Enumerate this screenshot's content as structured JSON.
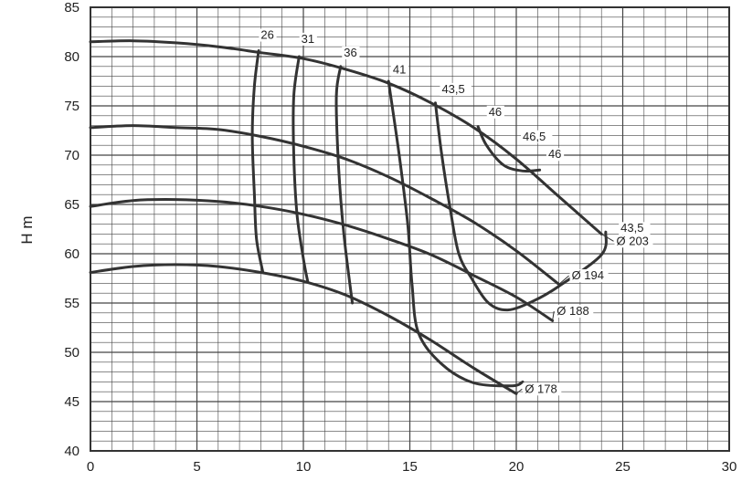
{
  "colors": {
    "curve": "#333333",
    "grid": "#444444",
    "text": "#222222",
    "background": "#ffffff"
  },
  "chart_data": {
    "type": "line",
    "title": "",
    "xlabel": "",
    "ylabel": "H m",
    "xlim": [
      0,
      30
    ],
    "ylim": [
      40,
      85
    ],
    "x_ticks": [
      "0",
      "5",
      "10",
      "15",
      "20",
      "25",
      "30"
    ],
    "y_ticks": [
      "40",
      "45",
      "50",
      "55",
      "60",
      "65",
      "70",
      "75",
      "80",
      "85"
    ],
    "grid": true,
    "impeller_curves": [
      {
        "label": "Ø 203",
        "label_at": [
          24.7,
          60.9
        ],
        "points": [
          [
            0,
            81.5
          ],
          [
            2,
            81.6
          ],
          [
            4,
            81.4
          ],
          [
            6,
            81.0
          ],
          [
            8,
            80.4
          ],
          [
            10,
            79.8
          ],
          [
            12,
            78.7
          ],
          [
            14,
            77.3
          ],
          [
            16,
            75.3
          ],
          [
            18,
            72.8
          ],
          [
            20,
            69.6
          ],
          [
            22,
            65.8
          ],
          [
            24,
            62.0
          ]
        ]
      },
      {
        "label": "Ø 194",
        "label_at": [
          22.6,
          57.4
        ],
        "points": [
          [
            0,
            72.8
          ],
          [
            2,
            73.0
          ],
          [
            4,
            72.8
          ],
          [
            6,
            72.6
          ],
          [
            8,
            71.9
          ],
          [
            10,
            70.9
          ],
          [
            12,
            69.6
          ],
          [
            14,
            67.8
          ],
          [
            16,
            65.6
          ],
          [
            18,
            63.2
          ],
          [
            20,
            60.3
          ],
          [
            22,
            56.9
          ]
        ]
      },
      {
        "label": "Ø 188",
        "label_at": [
          21.9,
          53.8
        ],
        "points": [
          [
            0,
            64.8
          ],
          [
            2,
            65.4
          ],
          [
            4,
            65.5
          ],
          [
            6,
            65.3
          ],
          [
            8,
            64.8
          ],
          [
            10,
            64.0
          ],
          [
            12,
            62.9
          ],
          [
            14,
            61.5
          ],
          [
            16,
            59.9
          ],
          [
            18,
            57.8
          ],
          [
            20,
            55.6
          ],
          [
            21.7,
            53.2
          ]
        ]
      },
      {
        "label": "Ø 178",
        "label_at": [
          20.4,
          45.9
        ],
        "points": [
          [
            0,
            58.1
          ],
          [
            2,
            58.7
          ],
          [
            4,
            58.9
          ],
          [
            6,
            58.7
          ],
          [
            8,
            58.1
          ],
          [
            10,
            57.2
          ],
          [
            12,
            55.8
          ],
          [
            14,
            53.7
          ],
          [
            16,
            51.2
          ],
          [
            18,
            48.4
          ],
          [
            20,
            45.8
          ]
        ]
      }
    ],
    "efficiency_curves": [
      {
        "label": "26",
        "label_at": [
          8.0,
          81.8
        ],
        "points": [
          [
            7.9,
            80.6
          ],
          [
            7.7,
            77.0
          ],
          [
            7.6,
            72.0
          ],
          [
            7.7,
            66.0
          ],
          [
            7.8,
            61.5
          ],
          [
            8.1,
            58.1
          ]
        ]
      },
      {
        "label": "31",
        "label_at": [
          9.9,
          81.4
        ],
        "points": [
          [
            9.8,
            80.0
          ],
          [
            9.55,
            76.0
          ],
          [
            9.55,
            70.0
          ],
          [
            9.7,
            64.0
          ],
          [
            10.0,
            59.5
          ],
          [
            10.2,
            57.2
          ]
        ]
      },
      {
        "label": "36",
        "label_at": [
          11.9,
          80.0
        ],
        "points": [
          [
            11.75,
            79.0
          ],
          [
            11.55,
            76.0
          ],
          [
            11.65,
            69.0
          ],
          [
            11.9,
            62.0
          ],
          [
            12.3,
            55.0
          ]
        ]
      },
      {
        "label": "41",
        "label_at": [
          14.2,
          78.3
        ],
        "points": [
          [
            14.0,
            77.5
          ],
          [
            14.5,
            70.0
          ],
          [
            14.9,
            63.0
          ],
          [
            15.1,
            57.0
          ],
          [
            15.4,
            52.0
          ],
          [
            16.5,
            48.8
          ],
          [
            18.0,
            46.9
          ],
          [
            19.8,
            46.6
          ],
          [
            20.3,
            47.0
          ]
        ]
      },
      {
        "label": "43,5",
        "label_at": [
          16.5,
          76.3
        ],
        "points": [
          [
            16.2,
            75.3
          ],
          [
            16.5,
            70.0
          ],
          [
            16.9,
            64.5
          ],
          [
            17.3,
            60.0
          ],
          [
            17.9,
            57.5
          ],
          [
            18.7,
            55.0
          ],
          [
            19.6,
            54.3
          ],
          [
            20.8,
            55.2
          ],
          [
            22.0,
            56.7
          ],
          [
            24.0,
            59.9
          ],
          [
            24.2,
            62.2
          ]
        ]
      },
      {
        "label": "46",
        "label_at": [
          18.7,
          74.0
        ],
        "points": [
          [
            18.2,
            72.9
          ],
          [
            18.6,
            71.0
          ],
          [
            19.4,
            69.0
          ],
          [
            20.3,
            68.4
          ],
          [
            21.1,
            68.5
          ]
        ]
      }
    ],
    "point_labels": [
      {
        "label": "46,5",
        "at": [
          20.3,
          71.5
        ]
      },
      {
        "label": "46",
        "at": [
          21.5,
          69.7
        ]
      },
      {
        "label": "43,5",
        "at": [
          24.9,
          62.2
        ]
      }
    ]
  }
}
